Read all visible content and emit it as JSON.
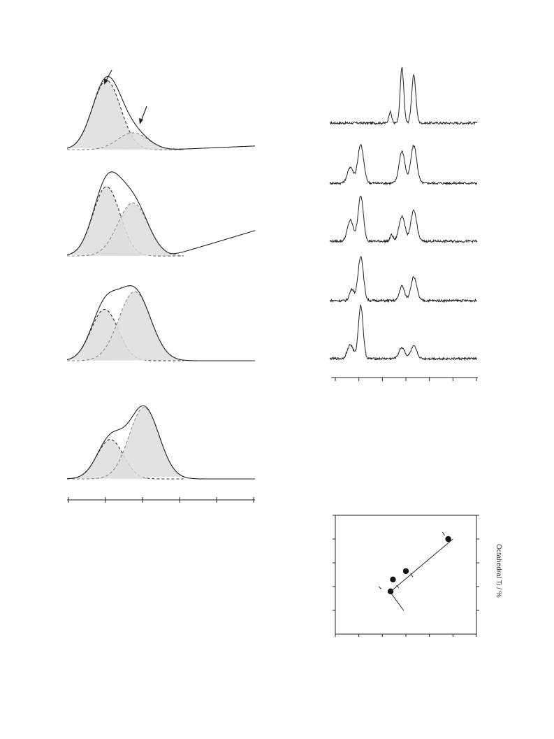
{
  "figure": {
    "colors": {
      "fill": "#dddddd",
      "line": "#222222",
      "dash": "#333333",
      "dash_faint": "#888888"
    },
    "left_panel": {
      "title": "",
      "type": "deconvolved-peaks",
      "note": "Four stacked spectra, each fitted with two Gaussian components (dashed, grey filled). Arrows mark the two components in the top spectrum. No axis labels visible.",
      "x_ticks_count": 6
    },
    "right_top_panel": {
      "title": "",
      "type": "stacked-spectra",
      "spectra_count": 5,
      "x_ticks_count": 7
    },
    "right_bottom_panel": {
      "ylabel_right": "Octahedral Ti / %"
    }
  },
  "chart_data": [
    {
      "type": "area",
      "title": "",
      "xlabel": "",
      "ylabel": "",
      "xlim": [
        0,
        10
      ],
      "spectra": [
        {
          "components": [
            {
              "center": 2.1,
              "width": 0.75,
              "height": 0.86
            },
            {
              "center": 3.5,
              "width": 0.8,
              "height": 0.21
            }
          ],
          "baseline_slope": 0.01
        },
        {
          "components": [
            {
              "center": 2.1,
              "width": 0.72,
              "height": 0.86
            },
            {
              "center": 3.5,
              "width": 0.8,
              "height": 0.66
            }
          ],
          "baseline_slope": 0.07
        },
        {
          "components": [
            {
              "center": 2.0,
              "width": 0.72,
              "height": 0.64
            },
            {
              "center": 3.6,
              "width": 0.85,
              "height": 0.86
            }
          ],
          "baseline_slope": 0.0
        },
        {
          "components": [
            {
              "center": 2.3,
              "width": 0.7,
              "height": 0.49
            },
            {
              "center": 4.1,
              "width": 0.8,
              "height": 0.89
            }
          ],
          "baseline_slope": 0.0
        }
      ]
    },
    {
      "type": "line",
      "title": "",
      "xlabel": "",
      "ylabel": "",
      "xlim": [
        0,
        10
      ],
      "spectra": [
        {
          "peaks": [
            {
              "x": 4.1,
              "h": 0.2,
              "w": 0.1
            },
            {
              "x": 4.9,
              "h": 0.99,
              "w": 0.12
            },
            {
              "x": 5.7,
              "h": 0.85,
              "w": 0.14
            }
          ]
        },
        {
          "peaks": [
            {
              "x": 1.4,
              "h": 0.33,
              "w": 0.2
            },
            {
              "x": 2.1,
              "h": 0.78,
              "w": 0.2
            },
            {
              "x": 4.9,
              "h": 0.65,
              "w": 0.2
            },
            {
              "x": 5.7,
              "h": 0.77,
              "w": 0.2
            }
          ]
        },
        {
          "peaks": [
            {
              "x": 1.4,
              "h": 0.4,
              "w": 0.2
            },
            {
              "x": 2.1,
              "h": 0.86,
              "w": 0.18
            },
            {
              "x": 4.2,
              "h": 0.12,
              "w": 0.1
            },
            {
              "x": 4.9,
              "h": 0.48,
              "w": 0.2
            },
            {
              "x": 5.7,
              "h": 0.58,
              "w": 0.2
            }
          ]
        },
        {
          "peaks": [
            {
              "x": 1.5,
              "h": 0.22,
              "w": 0.15
            },
            {
              "x": 2.1,
              "h": 0.85,
              "w": 0.18
            },
            {
              "x": 4.9,
              "h": 0.28,
              "w": 0.17
            },
            {
              "x": 5.7,
              "h": 0.45,
              "w": 0.2
            }
          ]
        },
        {
          "peaks": [
            {
              "x": 1.4,
              "h": 0.25,
              "w": 0.2
            },
            {
              "x": 2.1,
              "h": 0.95,
              "w": 0.16
            },
            {
              "x": 4.9,
              "h": 0.2,
              "w": 0.2
            },
            {
              "x": 5.7,
              "h": 0.22,
              "w": 0.2
            }
          ]
        }
      ]
    },
    {
      "type": "scatter",
      "title": "",
      "xlabel": "",
      "ylabel": "Octahedral Ti / %",
      "xlim": [
        0,
        6
      ],
      "ylim": [
        0,
        5
      ],
      "x_ticks_count": 7,
      "y_ticks_count": 6,
      "points": [
        {
          "x": 4.8,
          "y": 4.0
        },
        {
          "x": 3.0,
          "y": 2.65
        },
        {
          "x": 2.45,
          "y": 2.3
        },
        {
          "x": 2.35,
          "y": 1.8
        }
      ],
      "fit_line": {
        "x1": 2.3,
        "y1": 1.75,
        "x2": 5.0,
        "y2": 4.0
      }
    }
  ]
}
